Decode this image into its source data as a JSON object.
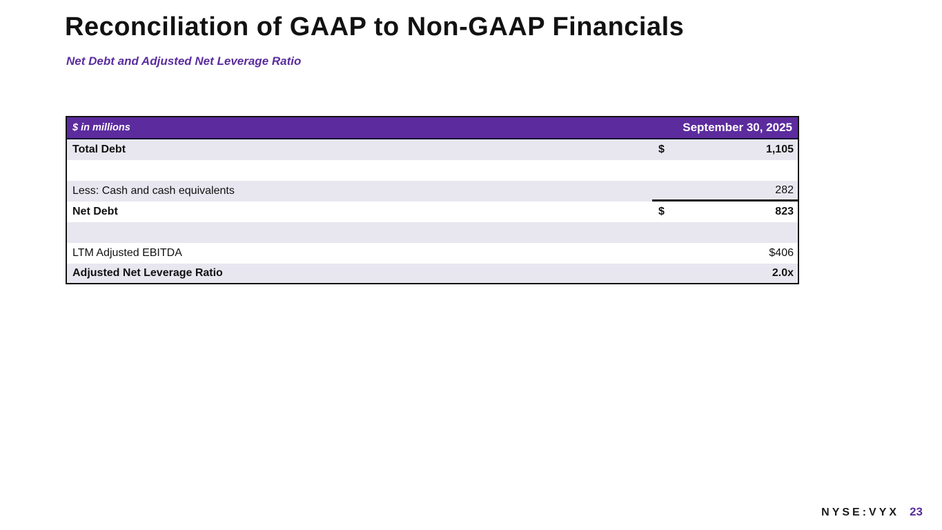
{
  "slide": {
    "title": "Reconciliation of GAAP to Non-GAAP Financials",
    "subtitle": "Net Debt and Adjusted Net Leverage Ratio"
  },
  "table": {
    "header": {
      "units_label": "$ in millions",
      "date_label": "September 30, 2025"
    },
    "rows": [
      {
        "label": "Total Debt",
        "currency": "$",
        "value": "1,105"
      },
      {
        "label": "",
        "currency": "",
        "value": ""
      },
      {
        "label": "Less: Cash and cash equivalents",
        "currency": "",
        "value": "282"
      },
      {
        "label": "Net Debt",
        "currency": "$",
        "value": "823"
      },
      {
        "label": "",
        "currency": "",
        "value": ""
      },
      {
        "label": "LTM Adjusted EBITDA",
        "currency": "",
        "value": "$406"
      },
      {
        "label": "Adjusted Net Leverage Ratio",
        "currency": "",
        "value": "2.0x"
      }
    ]
  },
  "footer": {
    "ticker": "NYSE:VYX",
    "page_number": "23"
  },
  "colors": {
    "accent_purple": "#5c2b9e",
    "row_shade": "#e8e7f0",
    "text_black": "#121212"
  }
}
